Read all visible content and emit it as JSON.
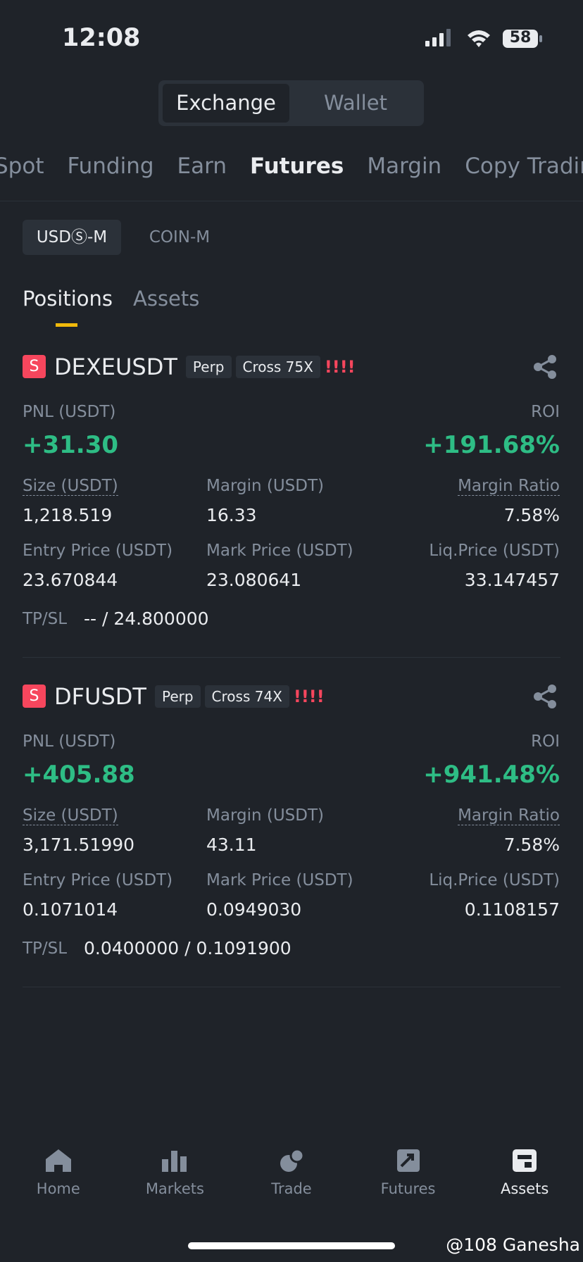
{
  "status": {
    "time": "12:08",
    "battery": "58"
  },
  "segmented": [
    "Exchange",
    "Wallet"
  ],
  "tabs": [
    "Spot",
    "Funding",
    "Earn",
    "Futures",
    "Margin",
    "Copy Trading"
  ],
  "contract_tabs": [
    "USDⓈ-M",
    "COIN-M"
  ],
  "position_tabs": [
    "Positions",
    "Assets"
  ],
  "labels": {
    "pnl": "PNL (USDT)",
    "roi": "ROI",
    "size": "Size (USDT)",
    "margin": "Margin (USDT)",
    "margin_ratio": "Margin Ratio",
    "entry": "Entry Price (USDT)",
    "mark": "Mark Price (USDT)",
    "liq": "Liq.Price (USDT)",
    "tpsl": "TP/SL"
  },
  "positions": [
    {
      "badge": "S",
      "symbol": "DEXEUSDT",
      "kind": "Perp",
      "mode": "Cross 75X",
      "warning": "!!!!",
      "pnl": "+31.30",
      "roi": "+191.68%",
      "size": "1,218.519",
      "margin": "16.33",
      "margin_ratio": "7.58%",
      "entry": "23.670844",
      "mark": "23.080641",
      "liq": "33.147457",
      "tpsl": "-- / 24.800000"
    },
    {
      "badge": "S",
      "symbol": "DFUSDT",
      "kind": "Perp",
      "mode": "Cross 74X",
      "warning": "!!!!",
      "pnl": "+405.88",
      "roi": "+941.48%",
      "size": "3,171.51990",
      "margin": "43.11",
      "margin_ratio": "7.58%",
      "entry": "0.1071014",
      "mark": "0.0949030",
      "liq": "0.1108157",
      "tpsl": "0.0400000 / 0.1091900"
    }
  ],
  "nav": [
    "Home",
    "Markets",
    "Trade",
    "Futures",
    "Assets"
  ],
  "watermark": "@108 Ganesha"
}
